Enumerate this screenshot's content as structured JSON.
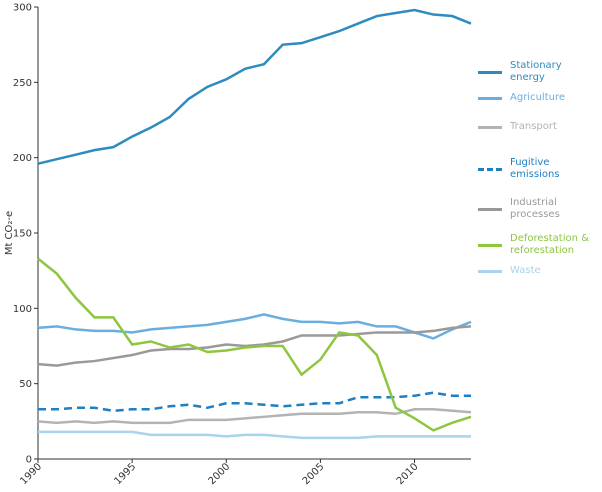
{
  "chart_data": {
    "type": "line",
    "y_label": "Mt CO₂-e",
    "x": [
      1990,
      1991,
      1992,
      1993,
      1994,
      1995,
      1996,
      1997,
      1998,
      1999,
      2000,
      2001,
      2002,
      2003,
      2004,
      2005,
      2006,
      2007,
      2008,
      2009,
      2010,
      2011,
      2012,
      2013
    ],
    "xlim": [
      1990,
      2013
    ],
    "xticks": [
      1990,
      1995,
      2000,
      2005,
      2010
    ],
    "ylim": [
      0,
      300
    ],
    "yticks": [
      0,
      50,
      100,
      150,
      200,
      250,
      300
    ],
    "series": [
      {
        "name": "Stationary energy",
        "color": "#2e8bc0",
        "dash": false,
        "values": [
          196,
          199,
          202,
          205,
          207,
          214,
          220,
          227,
          239,
          247,
          252,
          259,
          262,
          275,
          276,
          280,
          284,
          289,
          294,
          296,
          298,
          295,
          294,
          289
        ]
      },
      {
        "name": "Agriculture",
        "color": "#6aaee0",
        "dash": false,
        "values": [
          87,
          88,
          86,
          85,
          85,
          84,
          86,
          87,
          88,
          89,
          91,
          93,
          96,
          93,
          91,
          91,
          90,
          91,
          88,
          88,
          84,
          80,
          86,
          91
        ]
      },
      {
        "name": "Transport",
        "color": "#b3b3b3",
        "dash": false,
        "values": [
          25,
          24,
          25,
          24,
          25,
          24,
          24,
          24,
          26,
          26,
          26,
          27,
          28,
          29,
          30,
          30,
          30,
          31,
          31,
          30,
          33,
          33,
          32,
          31
        ]
      },
      {
        "name": "Fugitive emissions",
        "color": "#1f7fc0",
        "dash": true,
        "values": [
          33,
          33,
          34,
          34,
          32,
          33,
          33,
          35,
          36,
          34,
          37,
          37,
          36,
          35,
          36,
          37,
          37,
          41,
          41,
          41,
          42,
          44,
          42,
          42
        ]
      },
      {
        "name": "Industrial processes",
        "color": "#999999",
        "dash": false,
        "values": [
          63,
          62,
          64,
          65,
          67,
          69,
          72,
          73,
          73,
          74,
          76,
          75,
          76,
          78,
          82,
          82,
          82,
          83,
          84,
          84,
          84,
          85,
          87,
          88
        ]
      },
      {
        "name": "Deforestation & reforestation",
        "color": "#8dc63f",
        "dash": false,
        "values": [
          133,
          123,
          107,
          94,
          94,
          76,
          78,
          74,
          76,
          71,
          72,
          74,
          75,
          75,
          56,
          66,
          84,
          82,
          69,
          34,
          27,
          19,
          24,
          28
        ]
      },
      {
        "name": "Waste",
        "color": "#a8d4ee",
        "dash": false,
        "values": [
          18,
          18,
          18,
          18,
          18,
          18,
          16,
          16,
          16,
          16,
          15,
          16,
          16,
          15,
          14,
          14,
          14,
          14,
          15,
          15,
          15,
          15,
          15,
          15
        ]
      }
    ]
  }
}
